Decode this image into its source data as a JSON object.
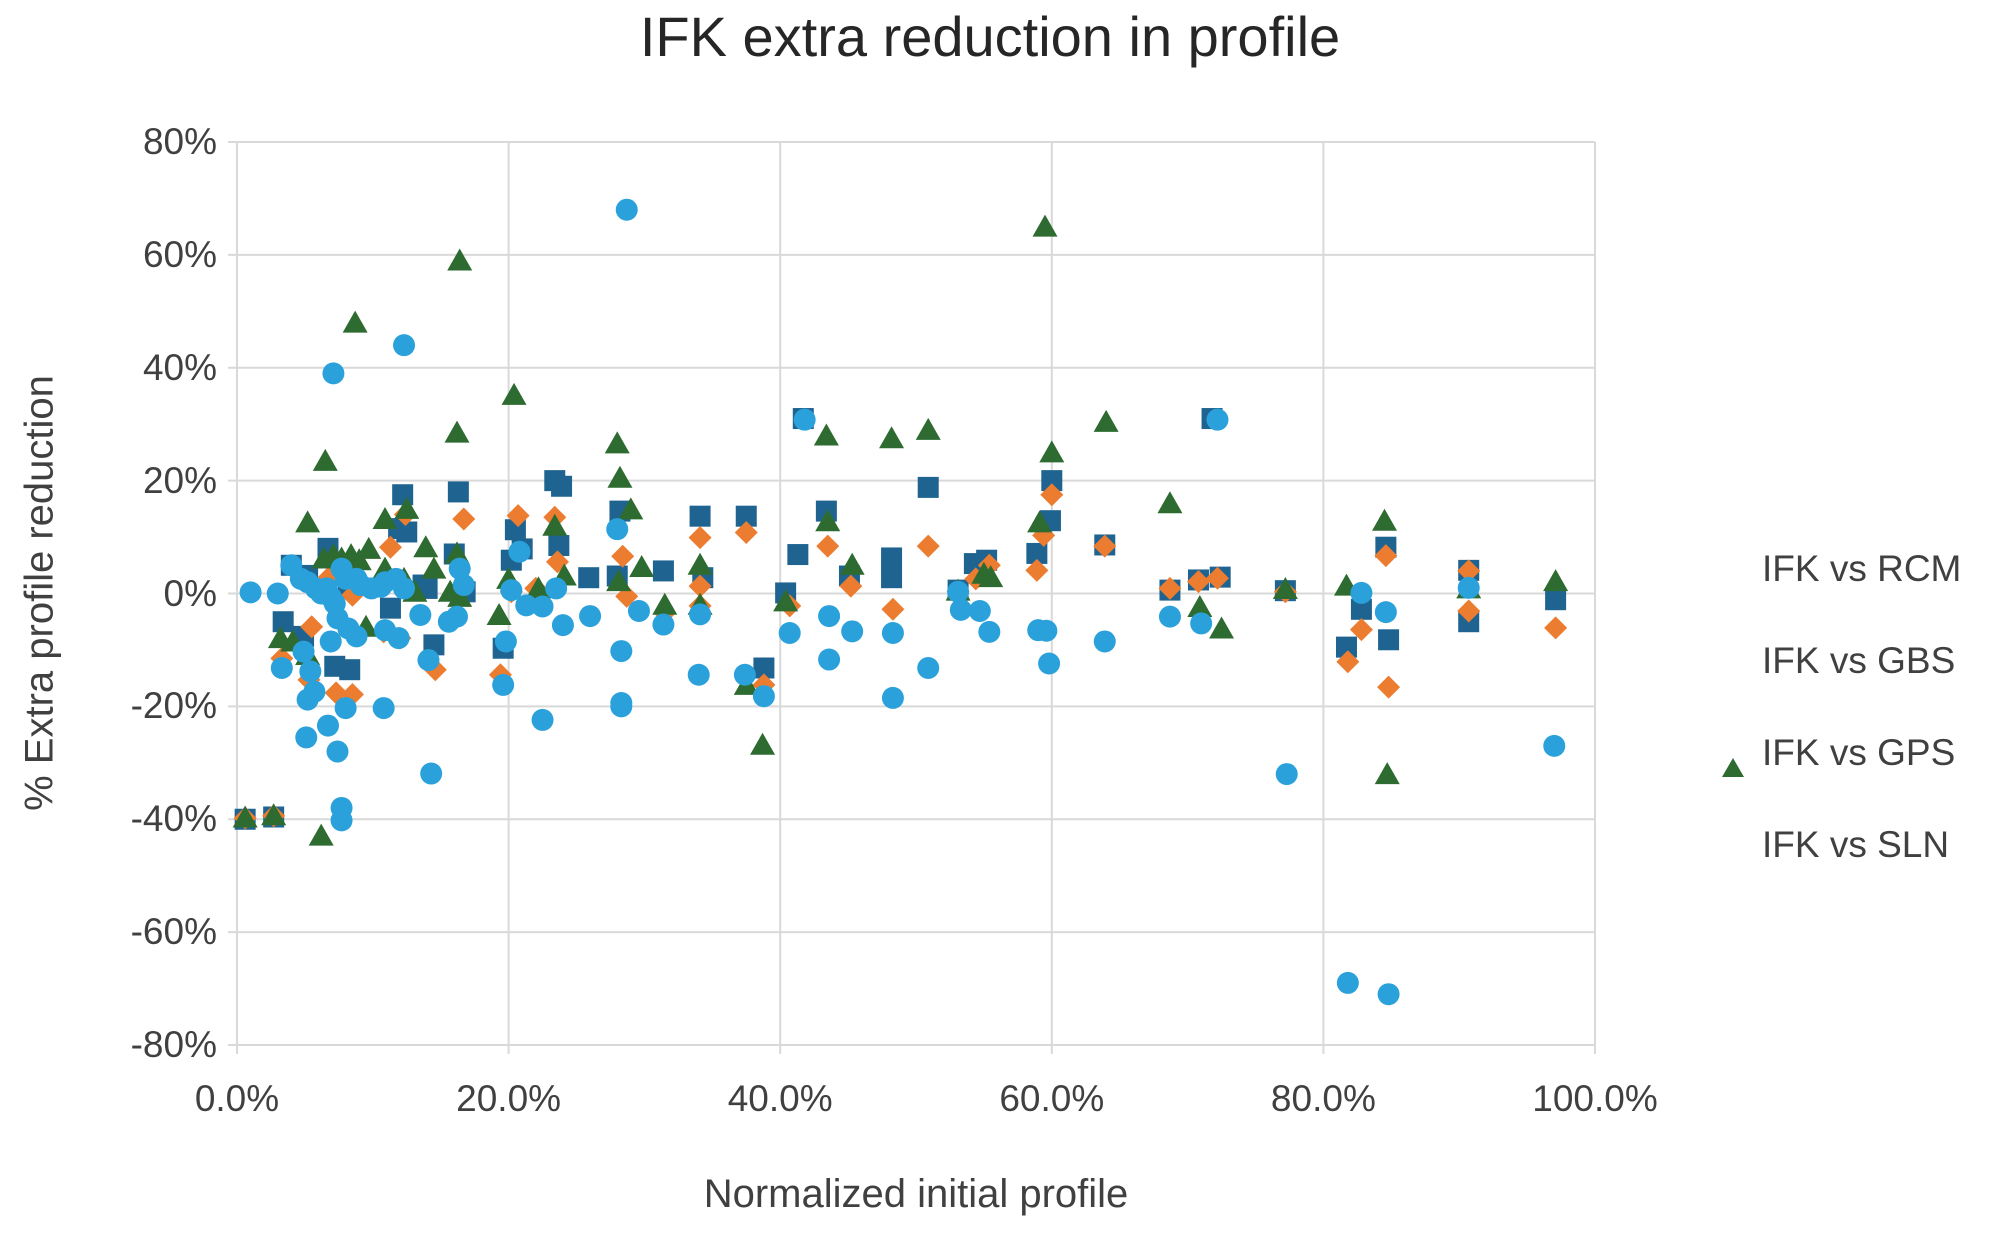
{
  "chart_data": {
    "type": "scatter",
    "title": "IFK extra reduction in profile",
    "xlabel": "Normalized initial profile",
    "ylabel": "% Extra profile reduction",
    "xlim": [
      0,
      100
    ],
    "ylim": [
      -80,
      80
    ],
    "grid": true,
    "legend_position": "right",
    "grid_color": "#d9d9d9",
    "text_color": "#404040",
    "title_color": "#262626",
    "x_ticks": [
      {
        "v": 0,
        "label": "0.0%"
      },
      {
        "v": 20,
        "label": "20.0%"
      },
      {
        "v": 40,
        "label": "40.0%"
      },
      {
        "v": 60,
        "label": "60.0%"
      },
      {
        "v": 80,
        "label": "80.0%"
      },
      {
        "v": 100,
        "label": "100.0%"
      }
    ],
    "y_ticks": [
      {
        "v": 80,
        "label": "80%"
      },
      {
        "v": 60,
        "label": "60%"
      },
      {
        "v": 40,
        "label": "40%"
      },
      {
        "v": 20,
        "label": "20%"
      },
      {
        "v": 0,
        "label": "0%"
      },
      {
        "v": -20,
        "label": "-20%"
      },
      {
        "v": -40,
        "label": "-40%"
      },
      {
        "v": -60,
        "label": "-60%"
      },
      {
        "v": -80,
        "label": "-80%"
      }
    ],
    "series": [
      {
        "name": "IFK vs RCM",
        "marker": "square",
        "color": "#1f6491",
        "points": [
          [
            0.6,
            -40.0
          ],
          [
            2.7,
            -39.6
          ],
          [
            3.4,
            -5.0
          ],
          [
            4.0,
            5.0
          ],
          [
            4.9,
            -7.6
          ],
          [
            5.2,
            3.2
          ],
          [
            6.7,
            8.0
          ],
          [
            7.2,
            -12.9
          ],
          [
            8.2,
            1.0
          ],
          [
            8.3,
            -13.5
          ],
          [
            11.3,
            -2.6
          ],
          [
            11.9,
            11.5
          ],
          [
            12.2,
            17.5
          ],
          [
            12.5,
            10.9
          ],
          [
            13.7,
            1.5
          ],
          [
            14.0,
            0.9
          ],
          [
            14.5,
            -9.1
          ],
          [
            16.0,
            7.0
          ],
          [
            16.3,
            18.0
          ],
          [
            16.8,
            0.3
          ],
          [
            19.6,
            -9.7
          ],
          [
            20.2,
            5.9
          ],
          [
            20.5,
            11.3
          ],
          [
            21.0,
            7.9
          ],
          [
            23.4,
            20.0
          ],
          [
            23.9,
            19.0
          ],
          [
            23.7,
            8.5
          ],
          [
            25.9,
            2.8
          ],
          [
            28.0,
            3.1
          ],
          [
            28.2,
            14.6
          ],
          [
            31.4,
            4.0
          ],
          [
            34.1,
            13.7
          ],
          [
            34.3,
            2.8
          ],
          [
            37.5,
            13.7
          ],
          [
            38.8,
            -13.2
          ],
          [
            40.4,
            0.1
          ],
          [
            41.3,
            6.9
          ],
          [
            41.7,
            31.0
          ],
          [
            43.4,
            14.6
          ],
          [
            45.1,
            3.1
          ],
          [
            48.2,
            6.3
          ],
          [
            48.2,
            2.8
          ],
          [
            50.9,
            18.8
          ],
          [
            53.1,
            0.6
          ],
          [
            54.3,
            5.3
          ],
          [
            55.2,
            5.9
          ],
          [
            58.9,
            7.1
          ],
          [
            59.9,
            12.9
          ],
          [
            60.0,
            20.0
          ],
          [
            63.9,
            8.6
          ],
          [
            68.7,
            0.6
          ],
          [
            70.8,
            2.4
          ],
          [
            72.4,
            2.9
          ],
          [
            71.8,
            31.0
          ],
          [
            77.2,
            0.5
          ],
          [
            81.7,
            -9.5
          ],
          [
            82.8,
            -2.8
          ],
          [
            84.6,
            8.2
          ],
          [
            84.8,
            -8.2
          ],
          [
            90.7,
            4.1
          ],
          [
            90.7,
            -5.0
          ],
          [
            97.1,
            -1.1
          ]
        ]
      },
      {
        "name": "IFK vs GBS",
        "marker": "diamond",
        "color": "#ec7c30",
        "points": [
          [
            0.6,
            -39.8
          ],
          [
            2.7,
            -39.4
          ],
          [
            3.3,
            -11.5
          ],
          [
            5.3,
            -15.3
          ],
          [
            5.5,
            -5.9
          ],
          [
            6.8,
            2.9
          ],
          [
            7.3,
            -17.6
          ],
          [
            8.5,
            -0.3
          ],
          [
            8.5,
            -17.9
          ],
          [
            10.8,
            -6.8
          ],
          [
            11.3,
            8.2
          ],
          [
            12.0,
            -7.9
          ],
          [
            12.4,
            14.0
          ],
          [
            14.6,
            -13.5
          ],
          [
            16.7,
            13.2
          ],
          [
            19.4,
            -14.4
          ],
          [
            20.2,
            0.3
          ],
          [
            20.7,
            13.8
          ],
          [
            22.0,
            0.9
          ],
          [
            23.4,
            13.5
          ],
          [
            23.6,
            5.6
          ],
          [
            28.4,
            6.6
          ],
          [
            28.7,
            -0.5
          ],
          [
            31.5,
            -3.4
          ],
          [
            34.1,
            9.9
          ],
          [
            34.1,
            1.3
          ],
          [
            34.1,
            -2.2
          ],
          [
            37.5,
            10.8
          ],
          [
            38.8,
            -16.2
          ],
          [
            40.7,
            -2.2
          ],
          [
            43.5,
            8.4
          ],
          [
            45.2,
            1.3
          ],
          [
            48.3,
            -2.8
          ],
          [
            50.9,
            8.4
          ],
          [
            53.1,
            0.4
          ],
          [
            54.4,
            2.6
          ],
          [
            55.4,
            5.0
          ],
          [
            58.9,
            4.1
          ],
          [
            59.4,
            10.3
          ],
          [
            60.0,
            17.5
          ],
          [
            63.9,
            8.4
          ],
          [
            68.7,
            0.9
          ],
          [
            70.8,
            2.1
          ],
          [
            72.2,
            2.7
          ],
          [
            77.2,
            0.3
          ],
          [
            81.8,
            -12.1
          ],
          [
            82.8,
            -6.4
          ],
          [
            84.6,
            6.7
          ],
          [
            84.8,
            -16.6
          ],
          [
            90.7,
            4.0
          ],
          [
            90.7,
            -3.1
          ],
          [
            97.1,
            -6.1
          ]
        ]
      },
      {
        "name": "IFK vs GPS",
        "marker": "triangle",
        "color": "#2e6b30",
        "points": [
          [
            0.6,
            -39.7
          ],
          [
            2.7,
            -39.3
          ],
          [
            3.2,
            -7.9
          ],
          [
            4.1,
            -8.5
          ],
          [
            5.2,
            12.6
          ],
          [
            5.2,
            -10.9
          ],
          [
            6.2,
            -42.9
          ],
          [
            6.4,
            6.2
          ],
          [
            6.5,
            23.5
          ],
          [
            7.1,
            6.8
          ],
          [
            7.7,
            6.2
          ],
          [
            8.4,
            6.8
          ],
          [
            8.7,
            48.0
          ],
          [
            9.0,
            5.9
          ],
          [
            9.5,
            -5.9
          ],
          [
            9.7,
            7.9
          ],
          [
            10.9,
            13.2
          ],
          [
            10.9,
            4.4
          ],
          [
            12.3,
            2.6
          ],
          [
            12.5,
            15.0
          ],
          [
            13.1,
            0.3
          ],
          [
            13.9,
            8.2
          ],
          [
            14.5,
            4.4
          ],
          [
            15.7,
            0.3
          ],
          [
            16.2,
            28.5
          ],
          [
            16.2,
            7.1
          ],
          [
            16.4,
            59.0
          ],
          [
            16.4,
            -0.6
          ],
          [
            19.3,
            -3.8
          ],
          [
            20.0,
            2.6
          ],
          [
            20.4,
            35.2
          ],
          [
            22.2,
            0.9
          ],
          [
            23.4,
            12.0
          ],
          [
            24.1,
            3.2
          ],
          [
            28.0,
            26.6
          ],
          [
            28.2,
            20.5
          ],
          [
            28.1,
            2.2
          ],
          [
            29.0,
            14.9
          ],
          [
            29.8,
            4.7
          ],
          [
            31.5,
            -2.0
          ],
          [
            34.1,
            5.1
          ],
          [
            34.1,
            -2.0
          ],
          [
            37.5,
            -16.2
          ],
          [
            38.7,
            -26.8
          ],
          [
            40.4,
            -1.4
          ],
          [
            43.4,
            28.0
          ],
          [
            43.5,
            12.8
          ],
          [
            45.3,
            5.1
          ],
          [
            48.2,
            27.5
          ],
          [
            50.9,
            29.0
          ],
          [
            53.1,
            0.5
          ],
          [
            55.0,
            3.5
          ],
          [
            55.5,
            2.9
          ],
          [
            59.1,
            12.6
          ],
          [
            59.5,
            65.0
          ],
          [
            60.0,
            25.0
          ],
          [
            64.0,
            30.4
          ],
          [
            68.7,
            16.0
          ],
          [
            70.9,
            -2.4
          ],
          [
            72.5,
            -6.2
          ],
          [
            77.2,
            0.8
          ],
          [
            81.7,
            1.4
          ],
          [
            84.5,
            12.9
          ],
          [
            84.7,
            -32.0
          ],
          [
            90.7,
            0.9
          ],
          [
            97.1,
            2.2
          ]
        ]
      },
      {
        "name": "IFK vs SLN",
        "marker": "circle",
        "color": "#2ba1db",
        "points": [
          [
            1.0,
            0.2
          ],
          [
            3.0,
            0.0
          ],
          [
            4.0,
            5.0
          ],
          [
            4.7,
            2.6
          ],
          [
            5.2,
            2.0
          ],
          [
            5.8,
            0.9
          ],
          [
            6.2,
            0.0
          ],
          [
            6.6,
            0.9
          ],
          [
            6.9,
            -0.6
          ],
          [
            7.2,
            -1.8
          ],
          [
            7.7,
            4.4
          ],
          [
            8.0,
            2.6
          ],
          [
            8.8,
            2.6
          ],
          [
            9.1,
            1.5
          ],
          [
            9.9,
            0.9
          ],
          [
            10.6,
            1.2
          ],
          [
            10.9,
            2.0
          ],
          [
            11.7,
            2.6
          ],
          [
            12.3,
            0.9
          ],
          [
            7.4,
            -4.4
          ],
          [
            8.2,
            -6.2
          ],
          [
            8.8,
            -7.6
          ],
          [
            6.9,
            -8.5
          ],
          [
            4.9,
            -10.3
          ],
          [
            3.3,
            -13.2
          ],
          [
            5.4,
            -13.8
          ],
          [
            5.7,
            -17.4
          ],
          [
            5.2,
            -18.8
          ],
          [
            8.0,
            -20.3
          ],
          [
            10.8,
            -20.3
          ],
          [
            10.9,
            -6.5
          ],
          [
            11.9,
            -7.9
          ],
          [
            13.5,
            -3.8
          ],
          [
            14.1,
            -11.8
          ],
          [
            15.6,
            -5.0
          ],
          [
            16.2,
            -4.1
          ],
          [
            16.4,
            4.4
          ],
          [
            16.7,
            1.5
          ],
          [
            19.8,
            -8.5
          ],
          [
            19.6,
            -16.2
          ],
          [
            20.2,
            0.6
          ],
          [
            20.8,
            7.4
          ],
          [
            21.3,
            -2.1
          ],
          [
            22.5,
            -2.3
          ],
          [
            23.5,
            0.9
          ],
          [
            24.0,
            -5.6
          ],
          [
            5.1,
            -25.5
          ],
          [
            6.7,
            -23.4
          ],
          [
            7.4,
            -28.0
          ],
          [
            7.7,
            -38.0
          ],
          [
            7.7,
            -40.2
          ],
          [
            14.3,
            -31.9
          ],
          [
            22.5,
            -22.4
          ],
          [
            28.3,
            -19.4
          ],
          [
            7.1,
            39.0
          ],
          [
            12.3,
            44.0
          ],
          [
            28.7,
            68.0
          ],
          [
            26.0,
            -4.0
          ],
          [
            28.0,
            11.4
          ],
          [
            28.3,
            -10.2
          ],
          [
            28.3,
            -20.0
          ],
          [
            29.6,
            -3.1
          ],
          [
            31.4,
            -5.5
          ],
          [
            34.0,
            -14.4
          ],
          [
            34.1,
            -3.7
          ],
          [
            37.4,
            -14.4
          ],
          [
            38.8,
            -18.2
          ],
          [
            40.7,
            -7.0
          ],
          [
            41.8,
            30.8
          ],
          [
            43.6,
            -4.0
          ],
          [
            43.6,
            -11.7
          ],
          [
            45.3,
            -6.7
          ],
          [
            48.3,
            -7.0
          ],
          [
            48.3,
            -18.5
          ],
          [
            50.9,
            -13.2
          ],
          [
            53.1,
            0.3
          ],
          [
            53.3,
            -2.9
          ],
          [
            54.7,
            -3.1
          ],
          [
            55.4,
            -6.8
          ],
          [
            59.0,
            -6.5
          ],
          [
            59.6,
            -6.6
          ],
          [
            59.8,
            -12.4
          ],
          [
            63.9,
            -8.5
          ],
          [
            68.7,
            -4.1
          ],
          [
            71.0,
            -5.3
          ],
          [
            72.2,
            30.8
          ],
          [
            77.3,
            -32.0
          ],
          [
            81.8,
            -69.0
          ],
          [
            82.8,
            0.1
          ],
          [
            84.6,
            -3.3
          ],
          [
            84.8,
            -71.0
          ],
          [
            90.7,
            1.0
          ],
          [
            97.0,
            -27.0
          ]
        ]
      }
    ]
  }
}
